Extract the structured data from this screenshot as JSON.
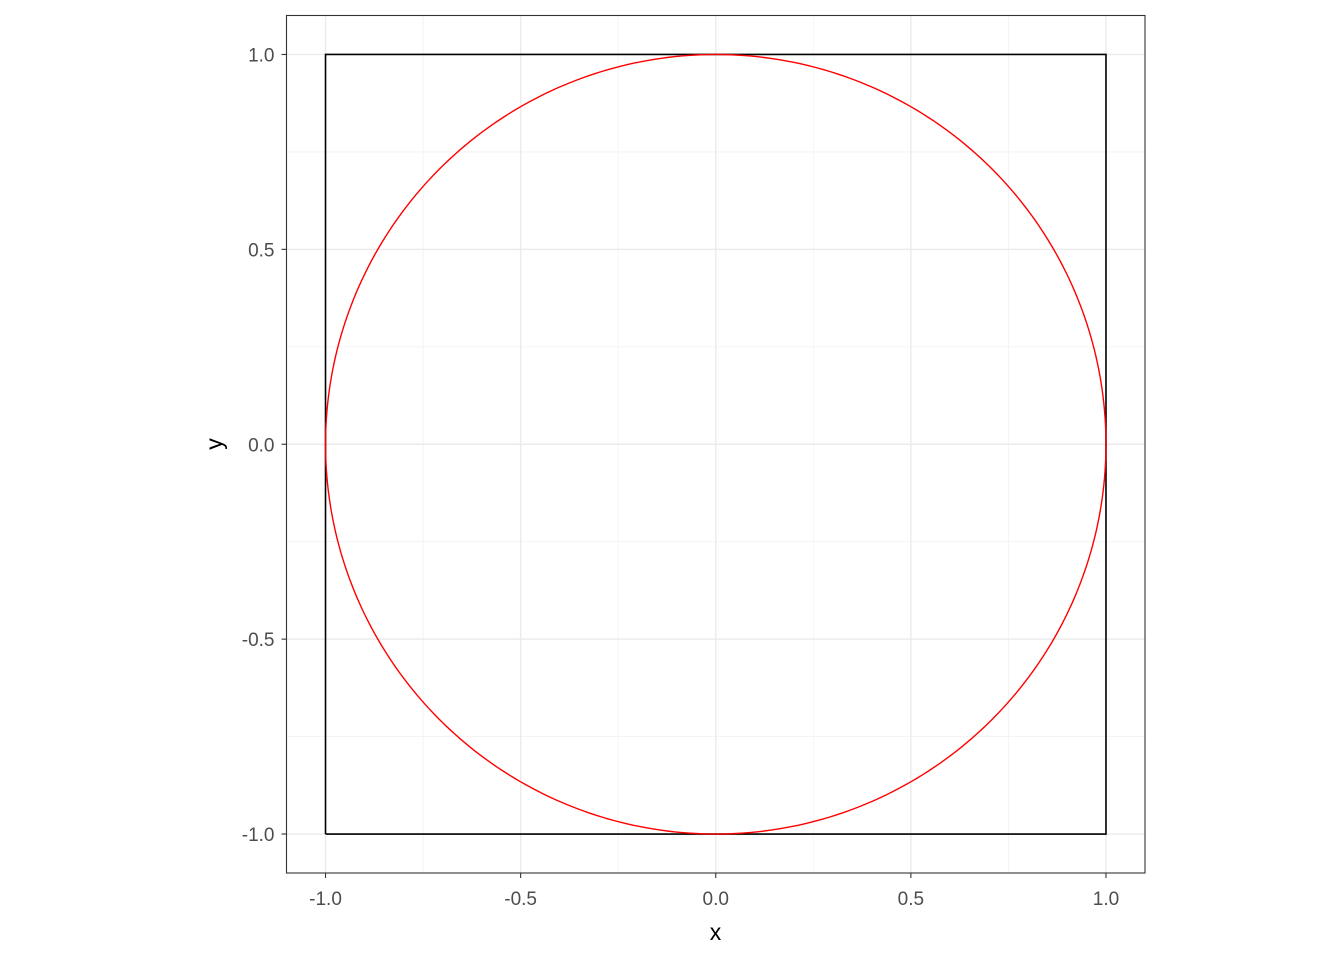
{
  "chart_data": {
    "type": "line",
    "title": "",
    "xlabel": "x",
    "ylabel": "y",
    "xlim": [
      -1.1,
      1.1
    ],
    "ylim": [
      -1.1,
      1.1
    ],
    "x_ticks": [
      -1.0,
      -0.5,
      0.0,
      0.5,
      1.0
    ],
    "y_ticks": [
      -1.0,
      -0.5,
      0.0,
      0.5,
      1.0
    ],
    "x_tick_labels": [
      "-1.0",
      "-0.5",
      "0.0",
      "0.5",
      "1.0"
    ],
    "y_tick_labels": [
      "-1.0",
      "-0.5",
      "0.0",
      "0.5",
      "1.0"
    ],
    "grid": true,
    "legend": "none",
    "series": [
      {
        "kind": "square",
        "color": "#000000",
        "x": [
          -1,
          1,
          1,
          -1,
          -1
        ],
        "y": [
          -1,
          -1,
          1,
          1,
          -1
        ]
      },
      {
        "kind": "circle",
        "color": "#FF0000",
        "center": [
          0,
          0
        ],
        "radius": 1
      }
    ]
  }
}
